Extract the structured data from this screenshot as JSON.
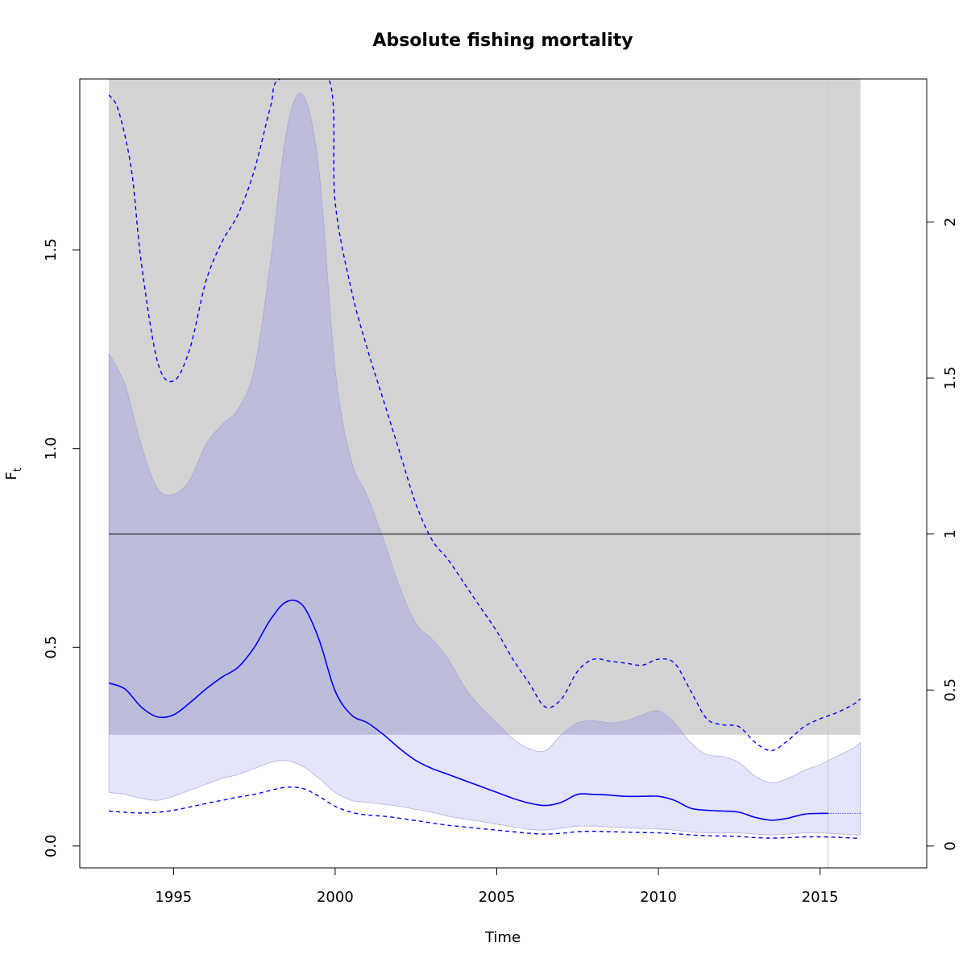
{
  "chart_data": {
    "type": "line",
    "title": "Absolute fishing mortality",
    "xlabel": "Time",
    "ylabel": "F",
    "ylabel_subscript": "t",
    "xlim": [
      1992.1,
      2018.3
    ],
    "ylim": [
      -0.055,
      1.93
    ],
    "x_ticks": [
      1995,
      2000,
      2005,
      2010,
      2015
    ],
    "y_ticks": [
      0.0,
      0.5,
      1.0,
      1.5
    ],
    "y_tick_labels": [
      "0.0",
      "0.5",
      "1.0",
      "1.5"
    ],
    "right_axis": {
      "ratio_to_left": 0.785,
      "ticks": [
        0,
        0.5,
        1,
        1.5,
        2
      ],
      "tick_labels": [
        "0",
        "0.5",
        "1",
        "1.5",
        "2"
      ]
    },
    "reference_region": {
      "x": [
        1993.0,
        2016.25
      ],
      "y": [
        0.28,
        1.93
      ],
      "color": "#d3d3d3"
    },
    "reference_line": {
      "y": 0.785,
      "color": "#666666"
    },
    "forecast_start": 2015.25,
    "colors": {
      "estimate": "#0000ff",
      "ci_band": "#e4e4fb",
      "ci_band_overlap": "#bbbdda",
      "grid_line": "#c8c8c8"
    },
    "series": [
      {
        "name": "",
        "role": "estimate",
        "x": [
          1993.0,
          1993.5,
          1994.0,
          1994.5,
          1995.0,
          1995.5,
          1996.0,
          1996.5,
          1997.0,
          1997.5,
          1998.0,
          1998.5,
          1999.0,
          1999.5,
          2000.0,
          2000.5,
          2001.0,
          2001.5,
          2002.0,
          2002.5,
          2003.0,
          2003.5,
          2004.0,
          2004.5,
          2005.0,
          2005.5,
          2006.0,
          2006.5,
          2007.0,
          2007.5,
          2008.0,
          2008.5,
          2009.0,
          2009.5,
          2010.0,
          2010.5,
          2011.0,
          2011.5,
          2012.0,
          2012.5,
          2013.0,
          2013.5,
          2014.0,
          2014.5,
          2015.0,
          2015.25
        ],
        "y": [
          0.41,
          0.395,
          0.35,
          0.325,
          0.33,
          0.36,
          0.395,
          0.425,
          0.45,
          0.5,
          0.57,
          0.615,
          0.605,
          0.52,
          0.39,
          0.33,
          0.31,
          0.28,
          0.245,
          0.215,
          0.195,
          0.18,
          0.165,
          0.15,
          0.135,
          0.12,
          0.108,
          0.102,
          0.11,
          0.13,
          0.13,
          0.128,
          0.125,
          0.125,
          0.125,
          0.115,
          0.095,
          0.09,
          0.088,
          0.085,
          0.072,
          0.065,
          0.07,
          0.08,
          0.082,
          0.082
        ]
      },
      {
        "name": "",
        "role": "forecast",
        "x": [
          2015.25,
          2016.25
        ],
        "y": [
          0.082,
          0.082
        ]
      },
      {
        "name": "",
        "role": "ci_upper",
        "x": [
          1993.0,
          1993.5,
          1994.0,
          1994.5,
          1995.0,
          1995.5,
          1996.0,
          1996.5,
          1997.0,
          1997.5,
          1998.0,
          1998.5,
          1999.0,
          1999.5,
          2000.0,
          2000.5,
          2001.0,
          2001.5,
          2002.0,
          2002.5,
          2003.0,
          2003.5,
          2004.0,
          2004.5,
          2005.0,
          2005.5,
          2006.0,
          2006.5,
          2007.0,
          2007.5,
          2008.0,
          2008.5,
          2009.0,
          2009.5,
          2010.0,
          2010.5,
          2011.0,
          2011.5,
          2012.0,
          2012.5,
          2013.0,
          2013.5,
          2014.0,
          2014.5,
          2015.0,
          2015.5,
          2016.0,
          2016.25
        ],
        "y": [
          1.24,
          1.16,
          1.01,
          0.9,
          0.885,
          0.92,
          1.01,
          1.06,
          1.1,
          1.2,
          1.47,
          1.8,
          1.89,
          1.7,
          1.2,
          0.97,
          0.88,
          0.77,
          0.65,
          0.56,
          0.52,
          0.47,
          0.4,
          0.35,
          0.31,
          0.27,
          0.245,
          0.24,
          0.28,
          0.31,
          0.315,
          0.31,
          0.315,
          0.33,
          0.34,
          0.31,
          0.26,
          0.23,
          0.225,
          0.21,
          0.175,
          0.16,
          0.17,
          0.19,
          0.205,
          0.225,
          0.245,
          0.26
        ]
      },
      {
        "name": "",
        "role": "ci_lower",
        "x": [
          1993.0,
          1993.5,
          1994.0,
          1994.5,
          1995.0,
          1995.5,
          1996.0,
          1996.5,
          1997.0,
          1997.5,
          1998.0,
          1998.5,
          1999.0,
          1999.5,
          2000.0,
          2000.5,
          2001.0,
          2001.5,
          2002.0,
          2002.5,
          2003.0,
          2003.5,
          2004.0,
          2004.5,
          2005.0,
          2005.5,
          2006.0,
          2006.5,
          2007.0,
          2007.5,
          2008.0,
          2008.5,
          2009.0,
          2009.5,
          2010.0,
          2010.5,
          2011.0,
          2011.5,
          2012.0,
          2012.5,
          2013.0,
          2013.5,
          2014.0,
          2014.5,
          2015.0,
          2015.5,
          2016.0,
          2016.25
        ],
        "y": [
          0.135,
          0.13,
          0.12,
          0.115,
          0.125,
          0.14,
          0.155,
          0.17,
          0.18,
          0.195,
          0.21,
          0.215,
          0.2,
          0.17,
          0.135,
          0.115,
          0.11,
          0.105,
          0.1,
          0.092,
          0.085,
          0.075,
          0.068,
          0.062,
          0.055,
          0.048,
          0.042,
          0.04,
          0.045,
          0.05,
          0.05,
          0.048,
          0.046,
          0.044,
          0.043,
          0.04,
          0.035,
          0.033,
          0.033,
          0.033,
          0.03,
          0.028,
          0.03,
          0.033,
          0.033,
          0.031,
          0.029,
          0.028
        ]
      },
      {
        "name": "",
        "role": "upper_dashed",
        "x": [
          1993.0,
          1993.3,
          1993.7,
          1994.0,
          1994.5,
          1995.0,
          1995.5,
          1996.0,
          1996.5,
          1997.0,
          1997.5,
          1998.0,
          1998.3,
          1999.8,
          2000.0,
          2000.5,
          2001.0,
          2001.5,
          2002.0,
          2002.5,
          2003.0,
          2003.5,
          2004.0,
          2004.5,
          2005.0,
          2005.5,
          2006.0,
          2006.5,
          2007.0,
          2007.5,
          2008.0,
          2008.5,
          2009.0,
          2009.5,
          2010.0,
          2010.5,
          2011.0,
          2011.5,
          2012.0,
          2012.5,
          2013.0,
          2013.5,
          2014.0,
          2014.5,
          2015.0,
          2015.5,
          2016.0,
          2016.25
        ],
        "y": [
          1.89,
          1.85,
          1.7,
          1.47,
          1.22,
          1.17,
          1.25,
          1.42,
          1.52,
          1.59,
          1.7,
          1.86,
          1.93,
          1.93,
          1.62,
          1.4,
          1.25,
          1.12,
          0.99,
          0.86,
          0.77,
          0.72,
          0.66,
          0.6,
          0.54,
          0.47,
          0.41,
          0.35,
          0.37,
          0.44,
          0.47,
          0.465,
          0.46,
          0.455,
          0.47,
          0.46,
          0.39,
          0.32,
          0.305,
          0.3,
          0.26,
          0.24,
          0.265,
          0.3,
          0.32,
          0.335,
          0.355,
          0.37
        ]
      },
      {
        "name": "",
        "role": "lower_dashed",
        "x": [
          1993.0,
          1993.5,
          1994.0,
          1994.5,
          1995.0,
          1995.5,
          1996.0,
          1996.5,
          1997.0,
          1997.5,
          1998.0,
          1998.5,
          1999.0,
          1999.5,
          2000.0,
          2000.5,
          2001.0,
          2001.5,
          2002.0,
          2002.5,
          2003.0,
          2003.5,
          2004.0,
          2004.5,
          2005.0,
          2005.5,
          2006.0,
          2006.5,
          2007.0,
          2007.5,
          2008.0,
          2008.5,
          2009.0,
          2009.5,
          2010.0,
          2010.5,
          2011.0,
          2011.5,
          2012.0,
          2012.5,
          2013.0,
          2013.5,
          2014.0,
          2014.5,
          2015.0,
          2015.5,
          2016.0,
          2016.25
        ],
        "y": [
          0.088,
          0.085,
          0.083,
          0.085,
          0.09,
          0.098,
          0.107,
          0.115,
          0.123,
          0.13,
          0.14,
          0.148,
          0.145,
          0.125,
          0.1,
          0.085,
          0.078,
          0.075,
          0.07,
          0.064,
          0.058,
          0.052,
          0.048,
          0.044,
          0.04,
          0.036,
          0.032,
          0.03,
          0.032,
          0.036,
          0.037,
          0.036,
          0.035,
          0.034,
          0.033,
          0.031,
          0.028,
          0.026,
          0.025,
          0.024,
          0.021,
          0.02,
          0.021,
          0.023,
          0.023,
          0.022,
          0.02,
          0.019
        ]
      }
    ]
  }
}
